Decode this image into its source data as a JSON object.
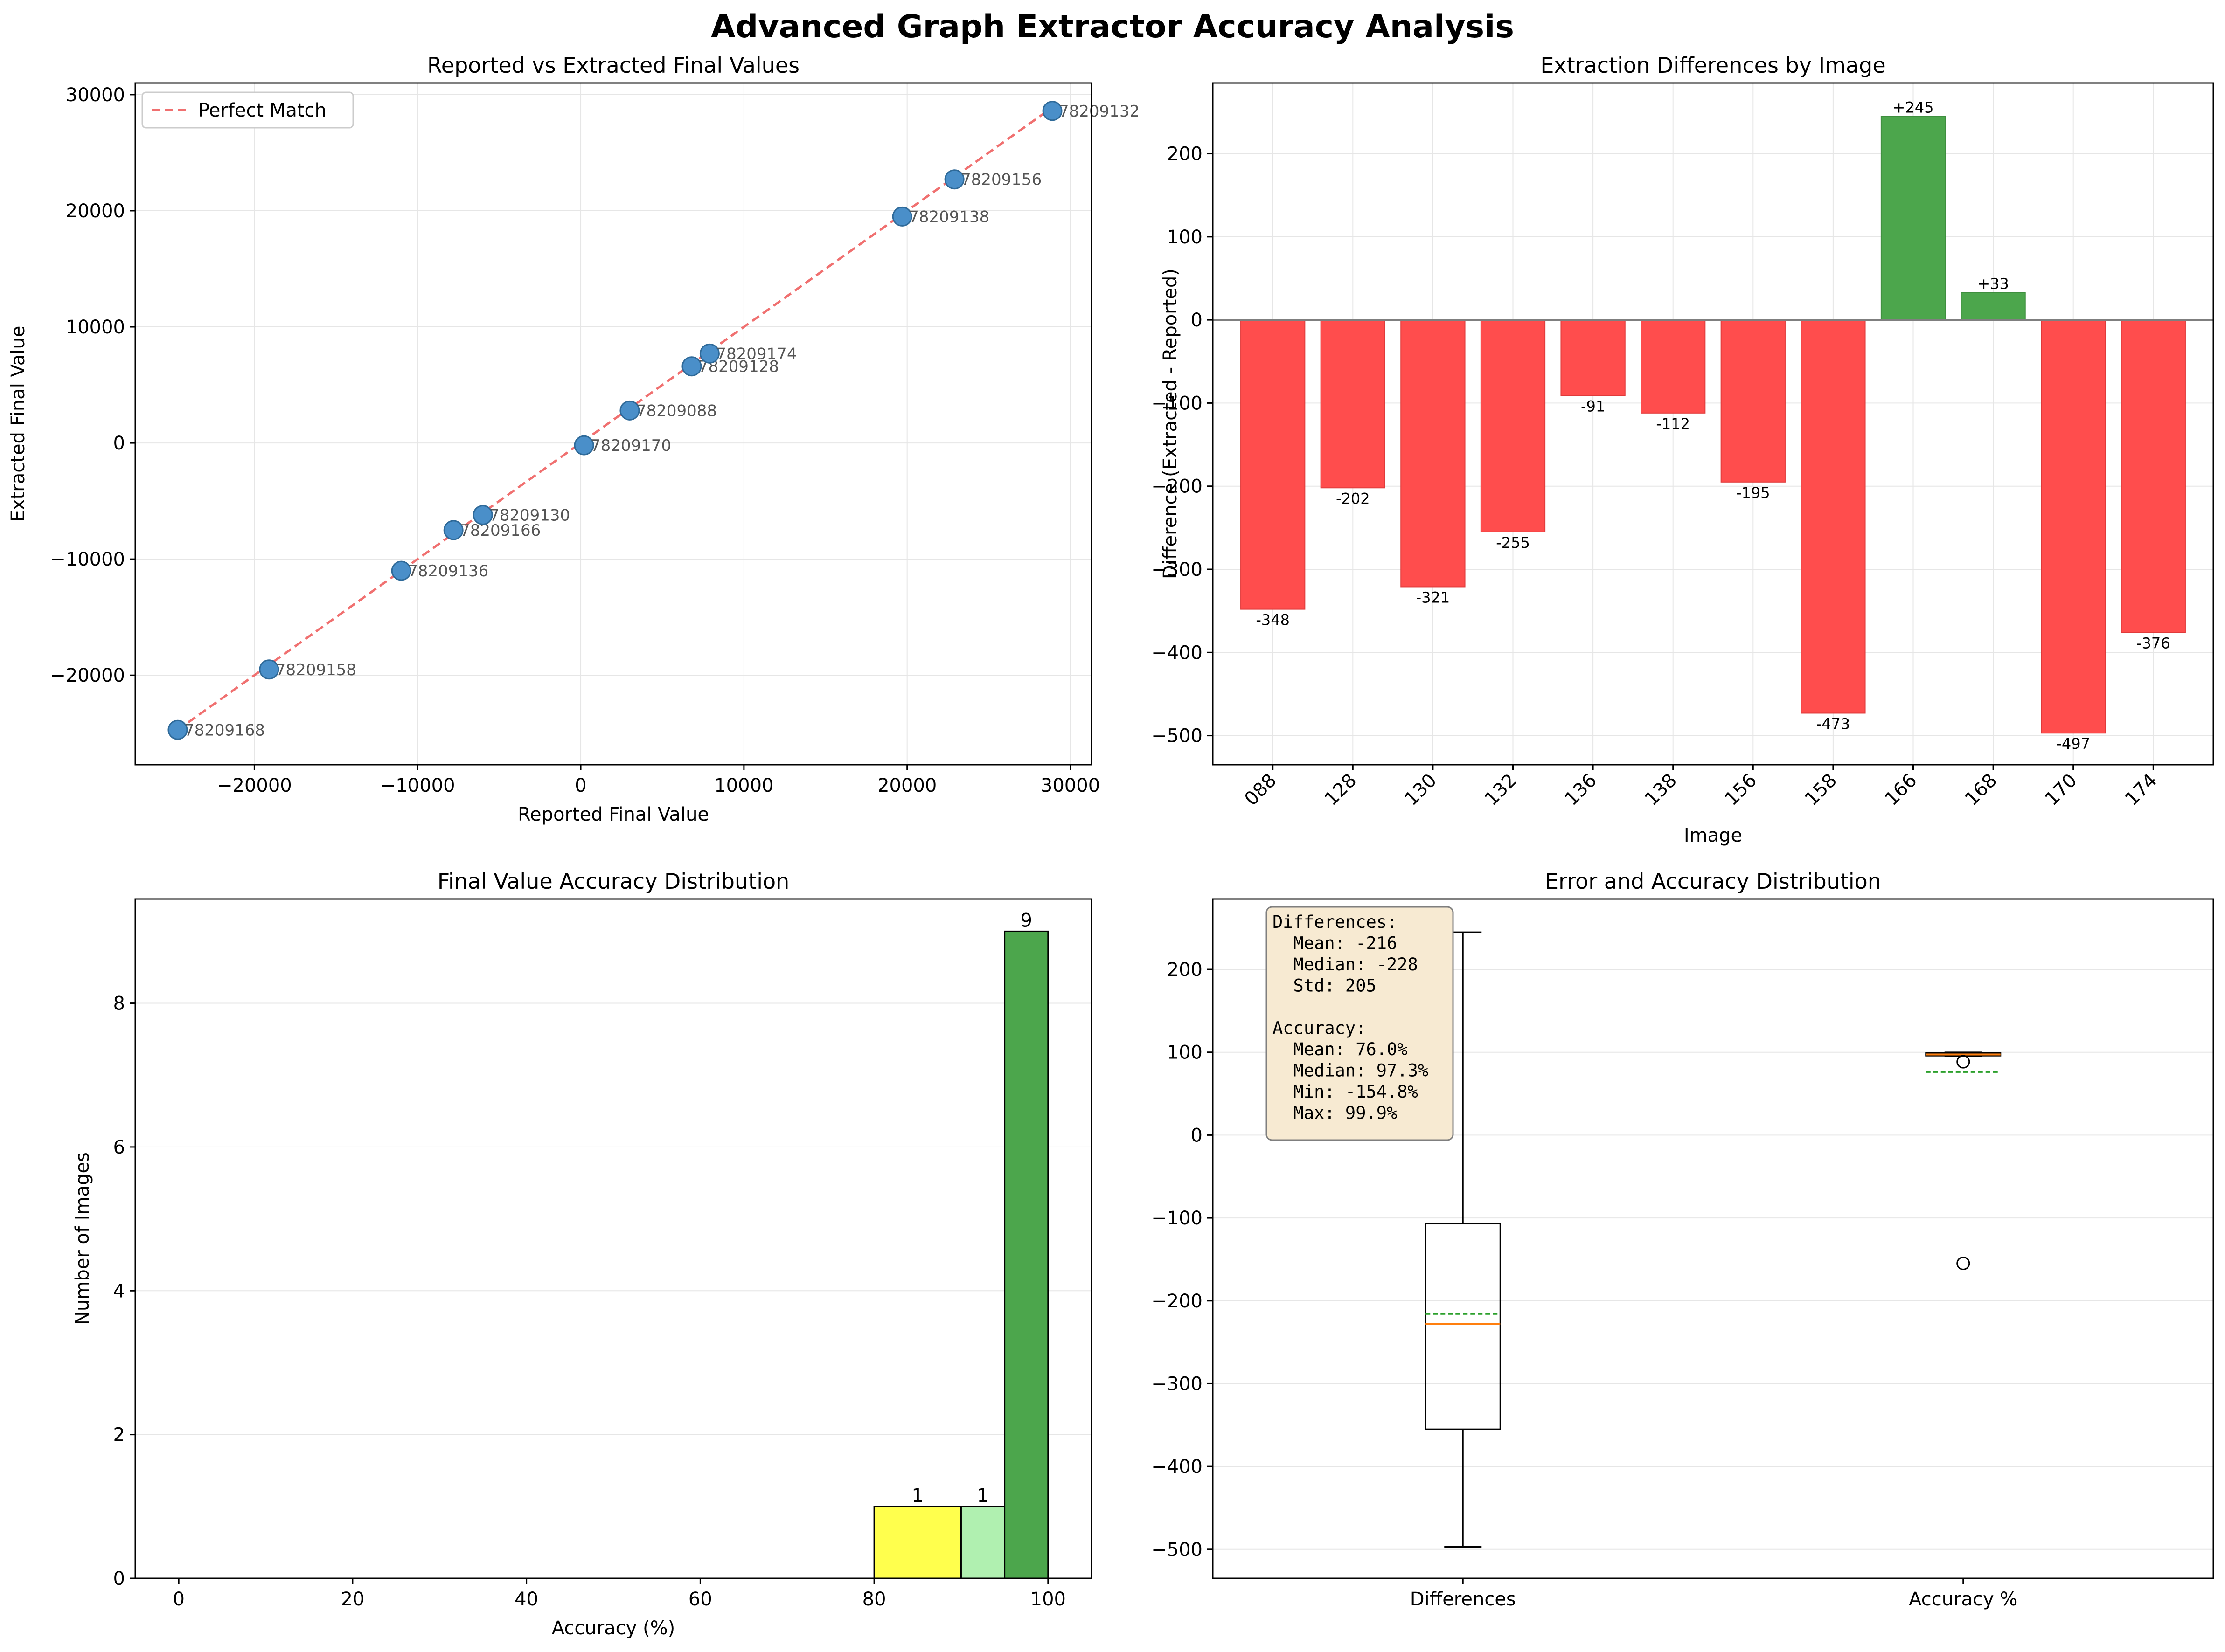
{
  "figure": {
    "title": "Advanced Graph Extractor Accuracy Analysis"
  },
  "chart_data": [
    {
      "type": "scatter",
      "title": "Reported vs Extracted Final Values",
      "xlabel": "Reported Final Value",
      "ylabel": "Extracted Final Value",
      "xlim": [
        -27300,
        31300
      ],
      "ylim": [
        -27700,
        31000
      ],
      "xticks": [
        -20000,
        -10000,
        0,
        10000,
        20000,
        30000
      ],
      "yticks": [
        -20000,
        -10000,
        0,
        10000,
        20000,
        30000
      ],
      "xtick_labels": [
        "−20000",
        "−10000",
        "0",
        "10000",
        "20000",
        "30000"
      ],
      "ytick_labels": [
        "−20000",
        "−10000",
        "0",
        "10000",
        "20000",
        "30000"
      ],
      "grid": true,
      "legend": {
        "placement": "top-left",
        "entries": [
          "Perfect Match"
        ]
      },
      "reference_line": {
        "name": "Perfect Match",
        "color": "#f07070",
        "from": [
          -24700,
          -24700
        ],
        "to": [
          29000,
          29000
        ]
      },
      "point_color": "#4a8fc9",
      "points": [
        {
          "label": "78209168",
          "x": -24700,
          "y": -24700
        },
        {
          "label": "78209158",
          "x": -19100,
          "y": -19500
        },
        {
          "label": "78209136",
          "x": -11000,
          "y": -11000
        },
        {
          "label": "78209166",
          "x": -7800,
          "y": -7500
        },
        {
          "label": "78209130",
          "x": -6000,
          "y": -6200
        },
        {
          "label": "78209170",
          "x": 200,
          "y": -200
        },
        {
          "label": "78209088",
          "x": 3000,
          "y": 2800
        },
        {
          "label": "78209128",
          "x": 6800,
          "y": 6600
        },
        {
          "label": "78209174",
          "x": 7900,
          "y": 7700
        },
        {
          "label": "78209138",
          "x": 19700,
          "y": 19500
        },
        {
          "label": "78209156",
          "x": 22900,
          "y": 22700
        },
        {
          "label": "78209132",
          "x": 28900,
          "y": 28600
        }
      ]
    },
    {
      "type": "bar",
      "title": "Extraction Differences by Image",
      "xlabel": "Image",
      "ylabel": "Difference (Extracted - Reported)",
      "ylim": [
        -535,
        285
      ],
      "yticks": [
        -500,
        -400,
        -300,
        -200,
        -100,
        0,
        100,
        200
      ],
      "ytick_labels": [
        "−500",
        "−400",
        "−300",
        "−200",
        "−100",
        "0",
        "100",
        "200"
      ],
      "grid": true,
      "categories": [
        "088",
        "128",
        "130",
        "132",
        "136",
        "138",
        "156",
        "158",
        "166",
        "168",
        "170",
        "174"
      ],
      "values": [
        -348,
        -202,
        -321,
        -255,
        -91,
        -112,
        -195,
        -473,
        245,
        33,
        -497,
        -376
      ],
      "data_labels": [
        "-348",
        "-202",
        "-321",
        "-255",
        "-91",
        "-112",
        "-195",
        "-473",
        "+245",
        "+33",
        "-497",
        "-376"
      ],
      "positive_color": "#4ca64c",
      "negative_color": "#ff4d4d"
    },
    {
      "type": "bar",
      "title": "Final Value Accuracy Distribution",
      "xlabel": "Accuracy (%)",
      "ylabel": "Number of Images",
      "xlim": [
        -5,
        105
      ],
      "ylim": [
        0,
        9.45
      ],
      "xticks": [
        0,
        20,
        40,
        60,
        80,
        100
      ],
      "xtick_labels": [
        "0",
        "20",
        "40",
        "60",
        "80",
        "100"
      ],
      "yticks": [
        0,
        2,
        4,
        6,
        8
      ],
      "ytick_labels": [
        "0",
        "2",
        "4",
        "6",
        "8"
      ],
      "grid": true,
      "bins": [
        {
          "from": 80,
          "to": 90,
          "count": 1,
          "label": "1",
          "color": "#ffff4d"
        },
        {
          "from": 90,
          "to": 95,
          "count": 1,
          "label": "1",
          "color": "#b0f0b0"
        },
        {
          "from": 95,
          "to": 100,
          "count": 9,
          "label": "9",
          "color": "#4ca64c"
        }
      ]
    },
    {
      "type": "box",
      "title": "Error and Accuracy Distribution",
      "ylim": [
        -535,
        285
      ],
      "yticks": [
        -500,
        -400,
        -300,
        -200,
        -100,
        0,
        100,
        200
      ],
      "ytick_labels": [
        "−500",
        "−400",
        "−300",
        "−200",
        "−100",
        "0",
        "100",
        "200"
      ],
      "grid": true,
      "categories": [
        "Differences",
        "Accuracy %"
      ],
      "boxes": [
        {
          "name": "Differences",
          "whisker_low": -497,
          "q1": -355,
          "median": -228,
          "mean": -216,
          "q3": -107,
          "whisker_high": 245,
          "outliers": []
        },
        {
          "name": "Accuracy %",
          "whisker_low": 95.5,
          "q1": 95.8,
          "median": 97.3,
          "mean": 76.0,
          "q3": 99.3,
          "whisker_high": 99.9,
          "outliers": [
            88.5,
            -154.8
          ]
        }
      ],
      "median_color": "#ff7f0e",
      "mean_color": "#2ca02c",
      "stats_box": {
        "lines": [
          "Differences:",
          "  Mean: -216",
          "  Median: -228",
          "  Std: 205",
          "",
          "Accuracy:",
          "  Mean: 76.0%",
          "  Median: 97.3%",
          "  Min: -154.8%",
          "  Max: 99.9%"
        ]
      }
    }
  ]
}
